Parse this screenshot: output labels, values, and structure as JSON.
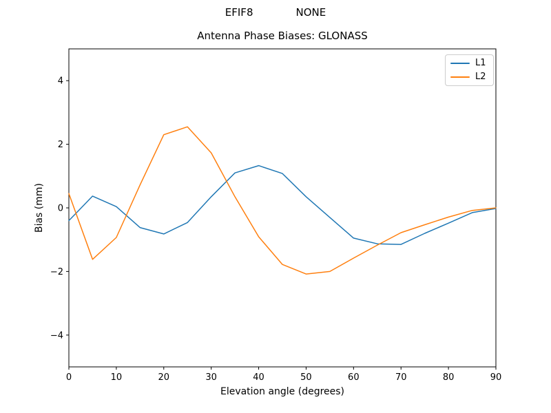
{
  "header": {
    "suptitle_left": "EFIF8",
    "suptitle_right": "NONE"
  },
  "chart_data": {
    "type": "line",
    "title": "Antenna Phase Biases: GLONASS",
    "xlabel": "Elevation angle (degrees)",
    "ylabel": "Bias (mm)",
    "xlim": [
      0,
      90
    ],
    "ylim": [
      -5,
      5
    ],
    "xticks": [
      0,
      10,
      20,
      30,
      40,
      50,
      60,
      70,
      80,
      90
    ],
    "yticks": [
      -4,
      -2,
      0,
      2,
      4
    ],
    "grid": false,
    "legend_position": "upper right",
    "x": [
      0,
      5,
      10,
      15,
      20,
      25,
      30,
      35,
      40,
      45,
      50,
      55,
      60,
      65,
      70,
      75,
      80,
      85,
      90
    ],
    "series": [
      {
        "name": "L1",
        "color": "#1f77b4",
        "values": [
          -0.4,
          0.37,
          0.04,
          -0.62,
          -0.82,
          -0.46,
          0.35,
          1.1,
          1.33,
          1.08,
          0.35,
          -0.3,
          -0.95,
          -1.13,
          -1.15,
          -0.8,
          -0.48,
          -0.15,
          -0.02
        ]
      },
      {
        "name": "L2",
        "color": "#ff7f0e",
        "values": [
          0.45,
          -1.62,
          -0.93,
          0.72,
          2.3,
          2.55,
          1.73,
          0.35,
          -0.91,
          -1.78,
          -2.08,
          -2.0,
          -1.58,
          -1.17,
          -0.78,
          -0.53,
          -0.29,
          -0.08,
          0.0
        ]
      }
    ]
  }
}
